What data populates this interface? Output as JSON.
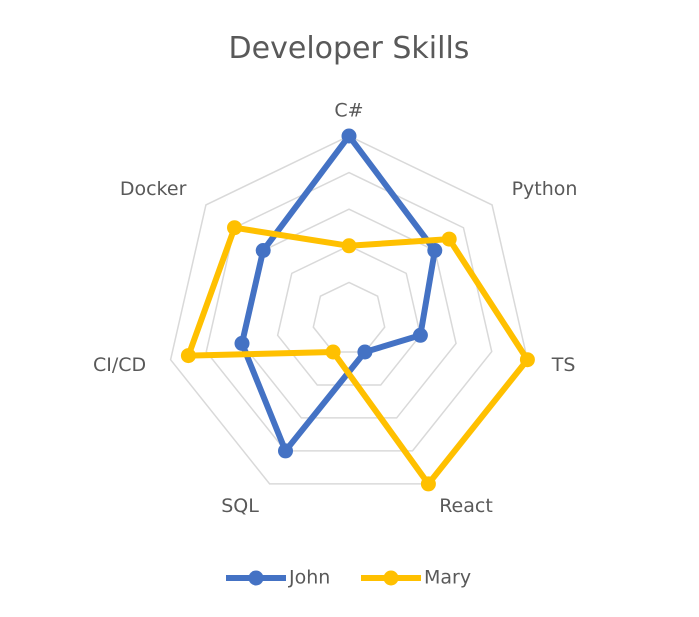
{
  "chart_data": {
    "type": "radar",
    "title": "Developer Skills",
    "categories": [
      "C#",
      "Python",
      "TS",
      "React",
      "SQL",
      "CI/CD",
      "Docker"
    ],
    "rmax": 5,
    "grid_rings": 5,
    "series": [
      {
        "name": "John",
        "color": "#4472C4",
        "values": [
          5,
          3,
          2,
          1,
          4,
          3,
          3
        ]
      },
      {
        "name": "Mary",
        "color": "#FFC000",
        "values": [
          2,
          3.5,
          5,
          5,
          1,
          4.5,
          4
        ]
      }
    ],
    "legend": "bottom",
    "grid": true
  }
}
